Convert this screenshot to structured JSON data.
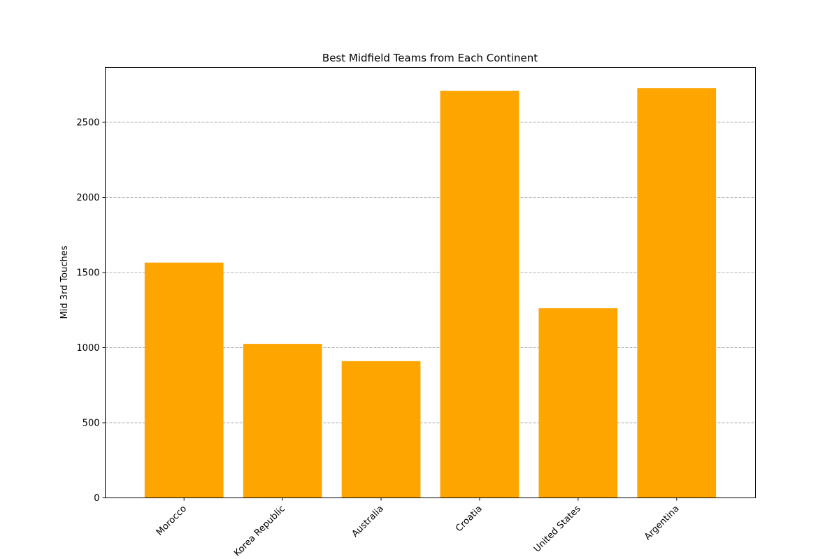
{
  "chart_data": {
    "type": "bar",
    "title": "Best Midfield Teams from Each Continent",
    "xlabel": "",
    "ylabel": "Mid 3rd Touches",
    "categories": [
      "Morocco",
      "Korea Republic",
      "Australia",
      "Croatia",
      "United States",
      "Argentina"
    ],
    "values": [
      1566,
      1025,
      910,
      2710,
      1262,
      2727
    ],
    "ylim": [
      0,
      2865
    ],
    "yticks": [
      0,
      500,
      1000,
      1500,
      2000,
      2500
    ],
    "grid": "y-dashed",
    "bar_color": "#FFA500",
    "grid_color": "#b0b0b0"
  }
}
